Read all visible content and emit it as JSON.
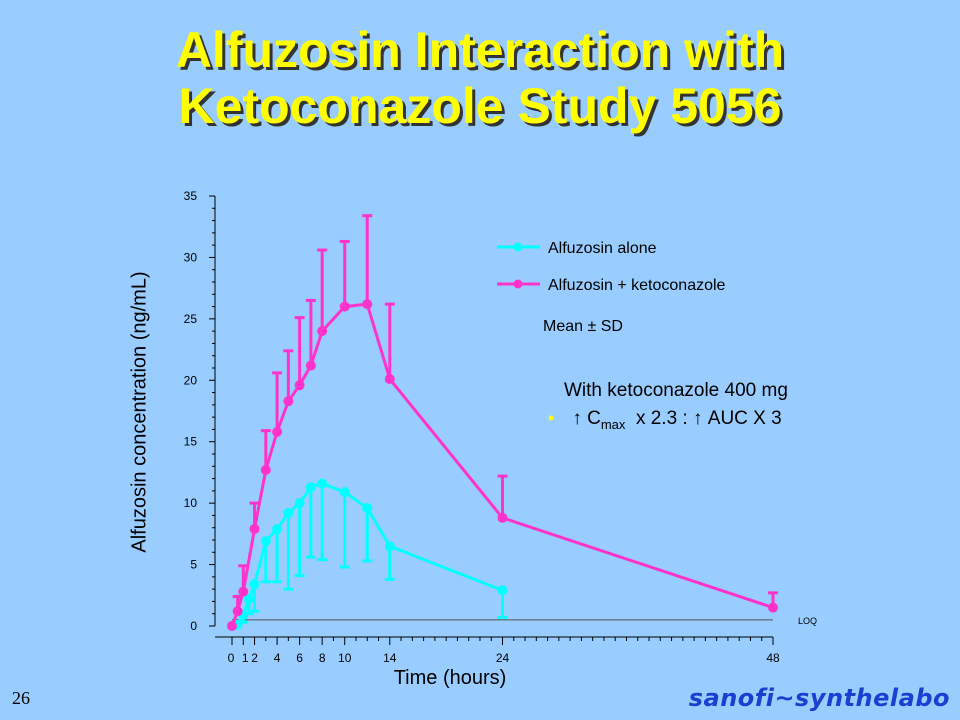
{
  "title": {
    "line1": "Alfuzosin Interaction with",
    "line2": "Ketoconazole Study 5056"
  },
  "slide_number": "26",
  "logo_text": "sanofi~synthelabo",
  "mean_sd": "Mean ± SD",
  "note": {
    "line1": "With ketoconazole 400 mg",
    "arrow": "↑",
    "cmax_base": "C",
    "cmax_sub": "max",
    "mid": "x 2.3 :",
    "auc": "AUC X 3"
  },
  "chart_data": {
    "type": "line",
    "xlabel": "Time (hours)",
    "ylabel": "Alfuzosin concentration (ng/mL)",
    "ylim": [
      0,
      35
    ],
    "yticks": [
      0,
      5,
      10,
      15,
      20,
      25,
      30,
      35
    ],
    "xlim": [
      0,
      48
    ],
    "xticks": [
      0,
      1,
      2,
      4,
      6,
      8,
      10,
      14,
      24,
      48
    ],
    "loq_label": "LOQ",
    "loq_value": 0.5,
    "legend_position": "top-right",
    "colors": {
      "alone": "#00ffff",
      "keto": "#ff33cc"
    },
    "series": [
      {
        "name": "Alfuzosin alone",
        "color": "#00ffff",
        "x": [
          0,
          0.5,
          1,
          1.5,
          2,
          3,
          4,
          5,
          6,
          7,
          8,
          10,
          12,
          14,
          24
        ],
        "y": [
          0,
          0.1,
          0.9,
          2.2,
          3.4,
          6.9,
          7.9,
          9.2,
          10.0,
          11.3,
          11.6,
          10.9,
          9.6,
          6.5,
          2.9
        ],
        "sd": [
          0,
          0,
          0.6,
          1.2,
          2.2,
          3.3,
          4.3,
          6.2,
          5.9,
          5.7,
          6.2,
          6.1,
          4.3,
          2.7,
          2.2
        ]
      },
      {
        "name": "Alfuzosin + ketoconazole",
        "color": "#ff33cc",
        "x": [
          0,
          0.5,
          1,
          2,
          3,
          4,
          5,
          6,
          7,
          8,
          10,
          12,
          14,
          24,
          48
        ],
        "y": [
          0,
          1.2,
          2.8,
          7.9,
          12.7,
          15.8,
          18.3,
          19.6,
          21.2,
          24.0,
          26.0,
          26.2,
          20.1,
          8.8,
          1.5
        ],
        "sd": [
          0,
          1.2,
          2.1,
          2.1,
          3.2,
          4.8,
          4.1,
          5.5,
          5.3,
          6.6,
          5.3,
          7.2,
          6.1,
          3.4,
          1.2
        ]
      }
    ]
  }
}
